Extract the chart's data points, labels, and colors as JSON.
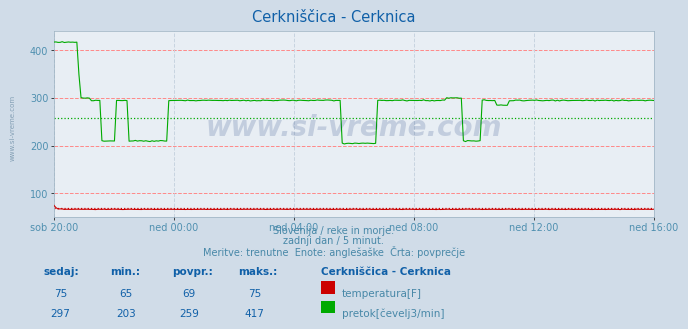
{
  "title": "Cerkniščica - Cerknica",
  "title_color": "#1060a8",
  "bg_color": "#d0dce8",
  "plot_bg_color": "#e8eef4",
  "grid_color_h": "#ff8888",
  "grid_color_v": "#c8d4e0",
  "tick_color": "#5090b0",
  "text_color": "#4888a8",
  "xlabels": [
    "sob 20:00",
    "ned 00:00",
    "ned 04:00",
    "ned 08:00",
    "ned 12:00",
    "ned 16:00"
  ],
  "ylim": [
    50,
    440
  ],
  "yticks": [
    100,
    200,
    300,
    400
  ],
  "temp_color": "#cc0000",
  "flow_color": "#00aa00",
  "temp_avg": 69,
  "flow_avg": 259,
  "temp_sedaj": 75,
  "temp_min": 65,
  "temp_max": 75,
  "flow_sedaj": 297,
  "flow_min": 203,
  "flow_avg_val": 259,
  "flow_max": 417,
  "subtitle1": "Slovenija / reke in morje.",
  "subtitle2": "zadnji dan / 5 minut.",
  "subtitle3": "Meritve: trenutne  Enote: anglešaške  Črta: povprečje",
  "watermark": "www.si-vreme.com",
  "side_text": "www.si-vreme.com",
  "n_points": 288,
  "legend_title": "Cerkniščica - Cerknica",
  "temp_label": "temperatura[F]",
  "flow_label": "pretok[čevelj3/min]",
  "header_cols": [
    "sedaj:",
    "min.:",
    "povpr.:",
    "maks.:"
  ]
}
